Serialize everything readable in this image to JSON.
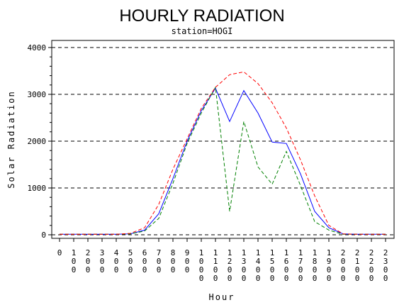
{
  "chart_data": {
    "type": "line",
    "title": "HOURLY RADIATION",
    "subtitle": "station=HOGI",
    "xlabel": "Hour",
    "ylabel": "Solar Radiation",
    "ylim": [
      0,
      4000
    ],
    "yticks": [
      0,
      1000,
      2000,
      3000,
      4000
    ],
    "ytick_labels": [
      "0",
      "1000",
      "2000",
      "3000",
      "4000"
    ],
    "x": [
      0,
      100,
      200,
      300,
      400,
      500,
      600,
      700,
      800,
      900,
      1000,
      1100,
      1200,
      1300,
      1400,
      1500,
      1600,
      1700,
      1800,
      1900,
      2000,
      2100,
      2200,
      2300
    ],
    "x_tick_labels": [
      "0",
      "100",
      "200",
      "300",
      "400",
      "500",
      "600",
      "700",
      "800",
      "900",
      "1000",
      "1100",
      "1200",
      "1300",
      "1400",
      "1500",
      "1600",
      "1700",
      "1800",
      "1900",
      "2000",
      "2100",
      "2200",
      "2300"
    ],
    "grid": "horizontal-dashed",
    "series": [
      {
        "color": "#0000ff",
        "dash": "solid",
        "values": [
          10,
          10,
          10,
          10,
          10,
          20,
          100,
          450,
          1200,
          2000,
          2650,
          3130,
          2420,
          3080,
          2600,
          1980,
          1950,
          1300,
          500,
          150,
          20,
          10,
          10,
          10
        ]
      },
      {
        "color": "#008000",
        "dash": "dashed",
        "values": [
          10,
          10,
          10,
          10,
          10,
          20,
          80,
          350,
          1100,
          1950,
          2600,
          3150,
          500,
          2420,
          1450,
          1080,
          1780,
          1050,
          280,
          100,
          10,
          10,
          10,
          10
        ]
      },
      {
        "color": "#ff0000",
        "dash": "dashed",
        "values": [
          10,
          10,
          10,
          10,
          10,
          30,
          150,
          650,
          1400,
          2050,
          2700,
          3150,
          3420,
          3480,
          3230,
          2820,
          2280,
          1600,
          830,
          200,
          20,
          10,
          10,
          10
        ]
      }
    ]
  }
}
